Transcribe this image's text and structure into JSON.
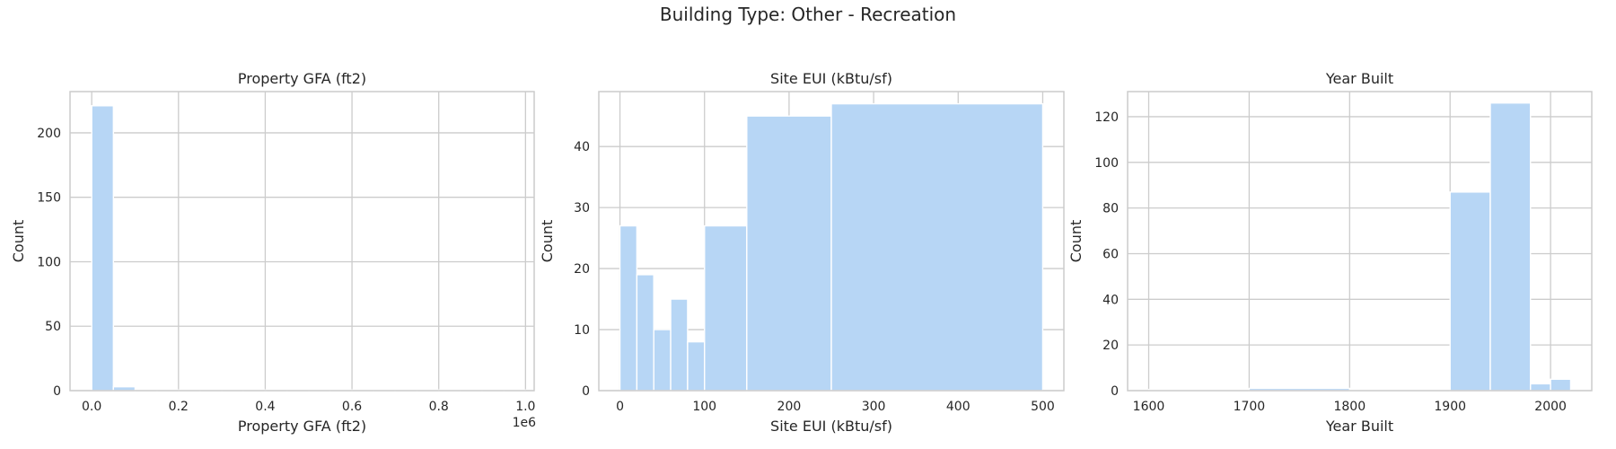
{
  "figure": {
    "suptitle": "Building Type: Other - Recreation",
    "bar_color": "#b7d6f5",
    "grid_color": "#cccccc",
    "frame_color": "#cccccc"
  },
  "chart_data": [
    {
      "type": "bar",
      "title": "Property GFA (ft2)",
      "xlabel": "Property GFA (ft2)",
      "ylabel": "Count",
      "x_offset_label": "1e6",
      "xlim": [
        -0.05,
        1.02
      ],
      "ylim": [
        0,
        232
      ],
      "xticks": [
        0.0,
        0.2,
        0.4,
        0.6,
        0.8,
        1.0
      ],
      "xtick_labels": [
        "0.0",
        "0.2",
        "0.4",
        "0.6",
        "0.8",
        "1.0"
      ],
      "yticks": [
        0,
        50,
        100,
        150,
        200
      ],
      "ytick_labels": [
        "0",
        "50",
        "100",
        "150",
        "200"
      ],
      "bins": [
        {
          "x0": 0.0,
          "x1": 0.05,
          "count": 221
        },
        {
          "x0": 0.05,
          "x1": 0.1,
          "count": 3
        },
        {
          "x0": 0.1,
          "x1": 0.15,
          "count": 0.5
        },
        {
          "x0": 0.15,
          "x1": 0.2,
          "count": 0.5
        },
        {
          "x0": 0.2,
          "x1": 0.25,
          "count": 0.5
        },
        {
          "x0": 0.25,
          "x1": 0.3,
          "count": 0.5
        },
        {
          "x0": 0.3,
          "x1": 0.35,
          "count": 0.5
        },
        {
          "x0": 0.35,
          "x1": 0.4,
          "count": 0.5
        },
        {
          "x0": 0.4,
          "x1": 0.45,
          "count": 0.5
        },
        {
          "x0": 0.45,
          "x1": 0.5,
          "count": 0.5
        },
        {
          "x0": 0.5,
          "x1": 0.55,
          "count": 0.5
        },
        {
          "x0": 0.55,
          "x1": 0.6,
          "count": 0.5
        },
        {
          "x0": 0.6,
          "x1": 0.65,
          "count": 0.5
        },
        {
          "x0": 0.65,
          "x1": 0.7,
          "count": 0.5
        },
        {
          "x0": 0.7,
          "x1": 0.75,
          "count": 0.5
        },
        {
          "x0": 0.75,
          "x1": 0.8,
          "count": 0.5
        },
        {
          "x0": 0.8,
          "x1": 0.85,
          "count": 0.5
        },
        {
          "x0": 0.85,
          "x1": 0.9,
          "count": 0.5
        },
        {
          "x0": 0.9,
          "x1": 0.95,
          "count": 0.5
        },
        {
          "x0": 0.95,
          "x1": 1.0,
          "count": 0.5
        }
      ],
      "grid": true
    },
    {
      "type": "bar",
      "title": "Site EUI (kBtu/sf)",
      "xlabel": "Site EUI (kBtu/sf)",
      "ylabel": "Count",
      "xlim": [
        -25,
        525
      ],
      "ylim": [
        0,
        49
      ],
      "xticks": [
        0,
        100,
        200,
        300,
        400,
        500
      ],
      "xtick_labels": [
        "0",
        "100",
        "200",
        "300",
        "400",
        "500"
      ],
      "yticks": [
        0,
        10,
        20,
        30,
        40
      ],
      "ytick_labels": [
        "0",
        "10",
        "20",
        "30",
        "40"
      ],
      "bins": [
        {
          "x0": 0,
          "x1": 20,
          "count": 27
        },
        {
          "x0": 20,
          "x1": 40,
          "count": 19
        },
        {
          "x0": 40,
          "x1": 60,
          "count": 10
        },
        {
          "x0": 60,
          "x1": 80,
          "count": 15
        },
        {
          "x0": 80,
          "x1": 100,
          "count": 8
        },
        {
          "x0": 100,
          "x1": 150,
          "count": 27
        },
        {
          "x0": 150,
          "x1": 250,
          "count": 45
        },
        {
          "x0": 250,
          "x1": 500,
          "count": 47
        }
      ],
      "grid": true
    },
    {
      "type": "bar",
      "title": "Year Built",
      "xlabel": "Year Built",
      "ylabel": "Count",
      "xlim": [
        1579,
        2041
      ],
      "ylim": [
        0,
        131
      ],
      "xticks": [
        1600,
        1700,
        1800,
        1900,
        2000
      ],
      "xtick_labels": [
        "1600",
        "1700",
        "1800",
        "1900",
        "2000"
      ],
      "yticks": [
        0,
        20,
        40,
        60,
        80,
        100,
        120
      ],
      "ytick_labels": [
        "0",
        "20",
        "40",
        "60",
        "80",
        "100",
        "120"
      ],
      "bins": [
        {
          "x0": 1600,
          "x1": 1700,
          "count": 0.5
        },
        {
          "x0": 1700,
          "x1": 1800,
          "count": 1
        },
        {
          "x0": 1800,
          "x1": 1900,
          "count": 0.5
        },
        {
          "x0": 1900,
          "x1": 1940,
          "count": 87
        },
        {
          "x0": 1940,
          "x1": 1980,
          "count": 126
        },
        {
          "x0": 1980,
          "x1": 2000,
          "count": 3
        },
        {
          "x0": 2000,
          "x1": 2020,
          "count": 5
        }
      ],
      "grid": true
    }
  ]
}
